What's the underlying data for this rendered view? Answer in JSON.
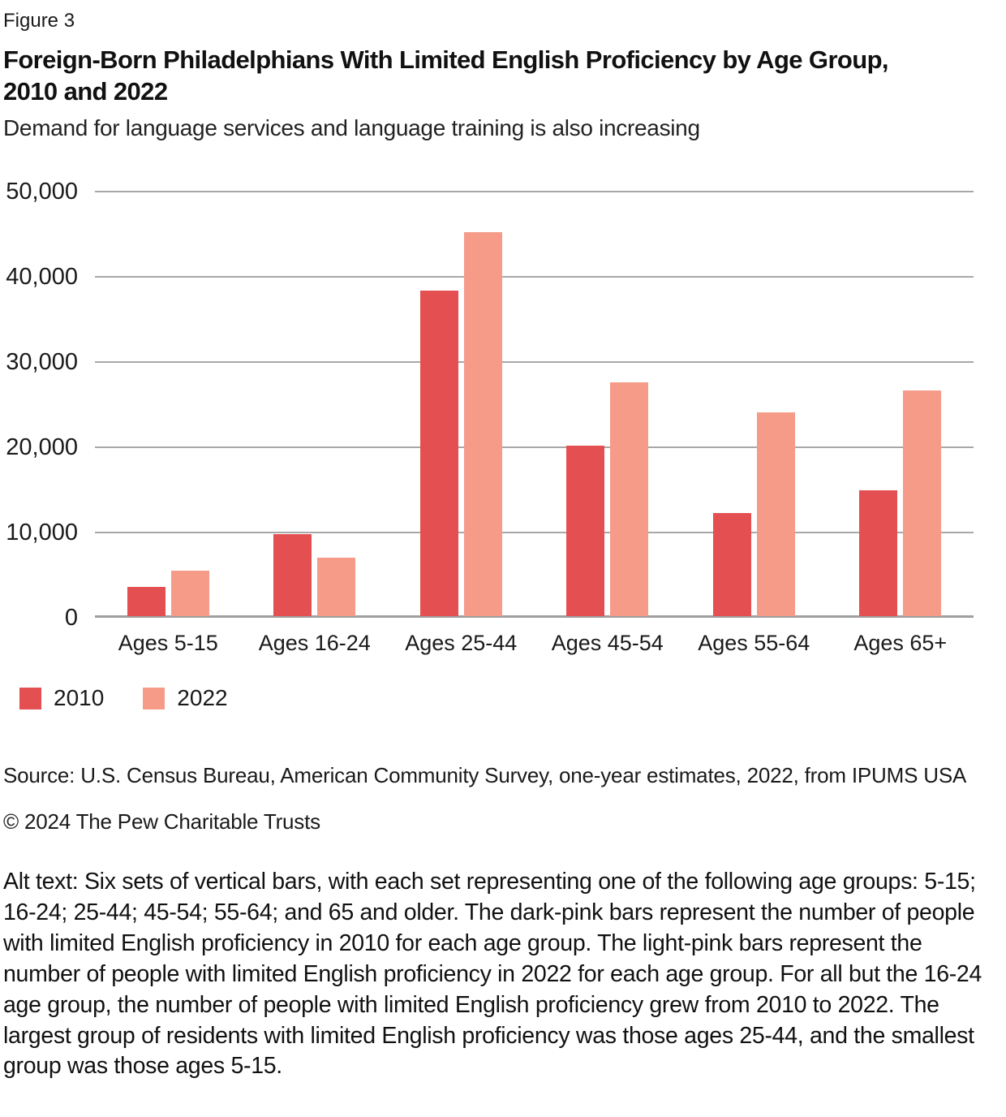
{
  "figure_label": "Figure 3",
  "title": "Foreign-Born Philadelphians With Limited English Proficiency by Age Group, 2010 and 2022",
  "subtitle": "Demand for language services and language training is also increasing",
  "colors": {
    "series_2010": "#e45051",
    "series_2022": "#f59b88",
    "gridline": "#a8a8a8",
    "axis_line": "#9f9f9f"
  },
  "chart_data": {
    "type": "bar",
    "categories": [
      "Ages 5-15",
      "Ages 16-24",
      "Ages 25-44",
      "Ages 45-54",
      "Ages 55-64",
      "Ages 65+"
    ],
    "series": [
      {
        "name": "2010",
        "color": "#e45051",
        "values": [
          3400,
          9600,
          38200,
          20000,
          12100,
          14800
        ]
      },
      {
        "name": "2022",
        "color": "#f59b88",
        "values": [
          5300,
          6900,
          45000,
          27400,
          23900,
          26500
        ]
      }
    ],
    "title": "Foreign-Born Philadelphians With Limited English Proficiency by Age Group, 2010 and 2022",
    "xlabel": "",
    "ylabel": "",
    "ylim": [
      0,
      50000
    ],
    "ytick_interval": 10000,
    "ytick_labels": [
      "0",
      "10,000",
      "20,000",
      "30,000",
      "40,000",
      "50,000"
    ],
    "grid": "horizontal",
    "legend_position": "bottom-left"
  },
  "legend": {
    "items": [
      {
        "label": "2010"
      },
      {
        "label": "2022"
      }
    ]
  },
  "source_line": "Source: U.S. Census Bureau, American Community Survey, one-year estimates, 2022, from IPUMS USA",
  "copyright_line": "© 2024 The Pew Charitable Trusts",
  "alt_text": "Alt text: Six sets of vertical bars, with each set representing one of the following age groups: 5-15; 16-24; 25-44; 45-54; 55-64; and 65 and older. The dark-pink bars represent the number of people with limited English proficiency in 2010 for each age group. The light-pink bars represent the number of people with limited English proficiency in 2022 for each age group. For all but the 16-24 age group, the number of people with limited English proficiency grew from 2010 to 2022. The largest group of residents with limited English proficiency was those ages 25-44, and the smallest group was those ages 5-15."
}
